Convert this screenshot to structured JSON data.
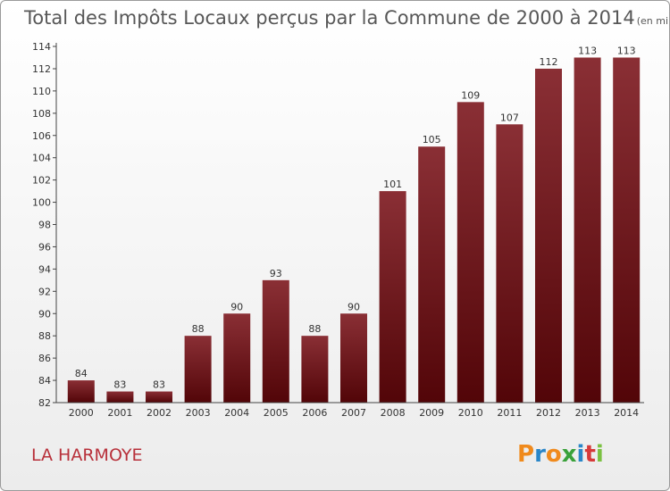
{
  "chart_data": {
    "type": "bar",
    "title": "Total des Impôts Locaux perçus par la Commune de 2000 à 2014",
    "subtitle": "(en milliers d'€)",
    "categories": [
      "2000",
      "2001",
      "2002",
      "2003",
      "2004",
      "2005",
      "2006",
      "2007",
      "2008",
      "2009",
      "2010",
      "2011",
      "2012",
      "2013",
      "2014"
    ],
    "values": [
      84,
      83,
      83,
      88,
      90,
      93,
      88,
      90,
      101,
      105,
      109,
      107,
      112,
      113,
      113
    ],
    "ylim": [
      82,
      114
    ],
    "yticks": [
      82,
      84,
      86,
      88,
      90,
      92,
      94,
      96,
      98,
      100,
      102,
      104,
      106,
      108,
      110,
      112,
      114
    ],
    "grid": false,
    "bar_color": "#6e1a1f",
    "data_labels": true
  },
  "commune_name": "LA HARMOYE",
  "logo_text": "Proxiti",
  "colors": {
    "commune": "#b8303a",
    "logo_letters": [
      "#f08a1c",
      "#2a86c8",
      "#f08a1c",
      "#3aa13a",
      "#2a86c8",
      "#d63a3a",
      "#7bc142"
    ]
  }
}
